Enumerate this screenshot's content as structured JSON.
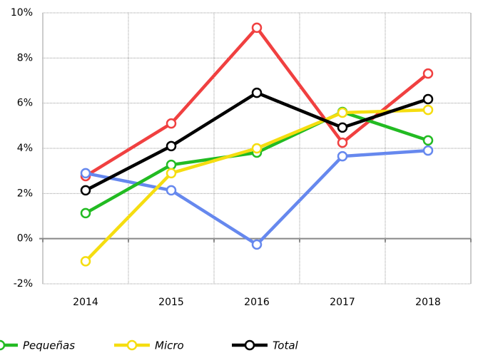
{
  "chart_data": {
    "type": "line",
    "categories": [
      "2014",
      "2015",
      "2016",
      "2017",
      "2018"
    ],
    "series": [
      {
        "color": "#f04040",
        "values": [
          2.77,
          5.1,
          9.34,
          4.25,
          7.31
        ]
      },
      {
        "color": "#6688ee",
        "values": [
          2.9,
          2.14,
          -0.26,
          3.65,
          3.9
        ]
      },
      {
        "name": "Pequeñas",
        "color": "#22bb22",
        "values": [
          1.13,
          3.27,
          3.81,
          5.61,
          4.35
        ]
      },
      {
        "name": "Micro",
        "color": "#f5dd10",
        "values": [
          -1.0,
          2.9,
          4.0,
          5.58,
          5.7
        ]
      },
      {
        "name": "Total",
        "color": "#000000",
        "values": [
          2.14,
          4.1,
          6.46,
          4.92,
          6.18
        ]
      }
    ],
    "ylim": [
      -2,
      10
    ],
    "yticks": [
      {
        "value": -2,
        "label": "-2%"
      },
      {
        "value": 0,
        "label": "0%"
      },
      {
        "value": 2,
        "label": "2%"
      },
      {
        "value": 4,
        "label": "4%"
      },
      {
        "value": 6,
        "label": "6%"
      },
      {
        "value": 8,
        "label": "8%"
      },
      {
        "value": 10,
        "label": "10%"
      }
    ],
    "grid": true
  }
}
